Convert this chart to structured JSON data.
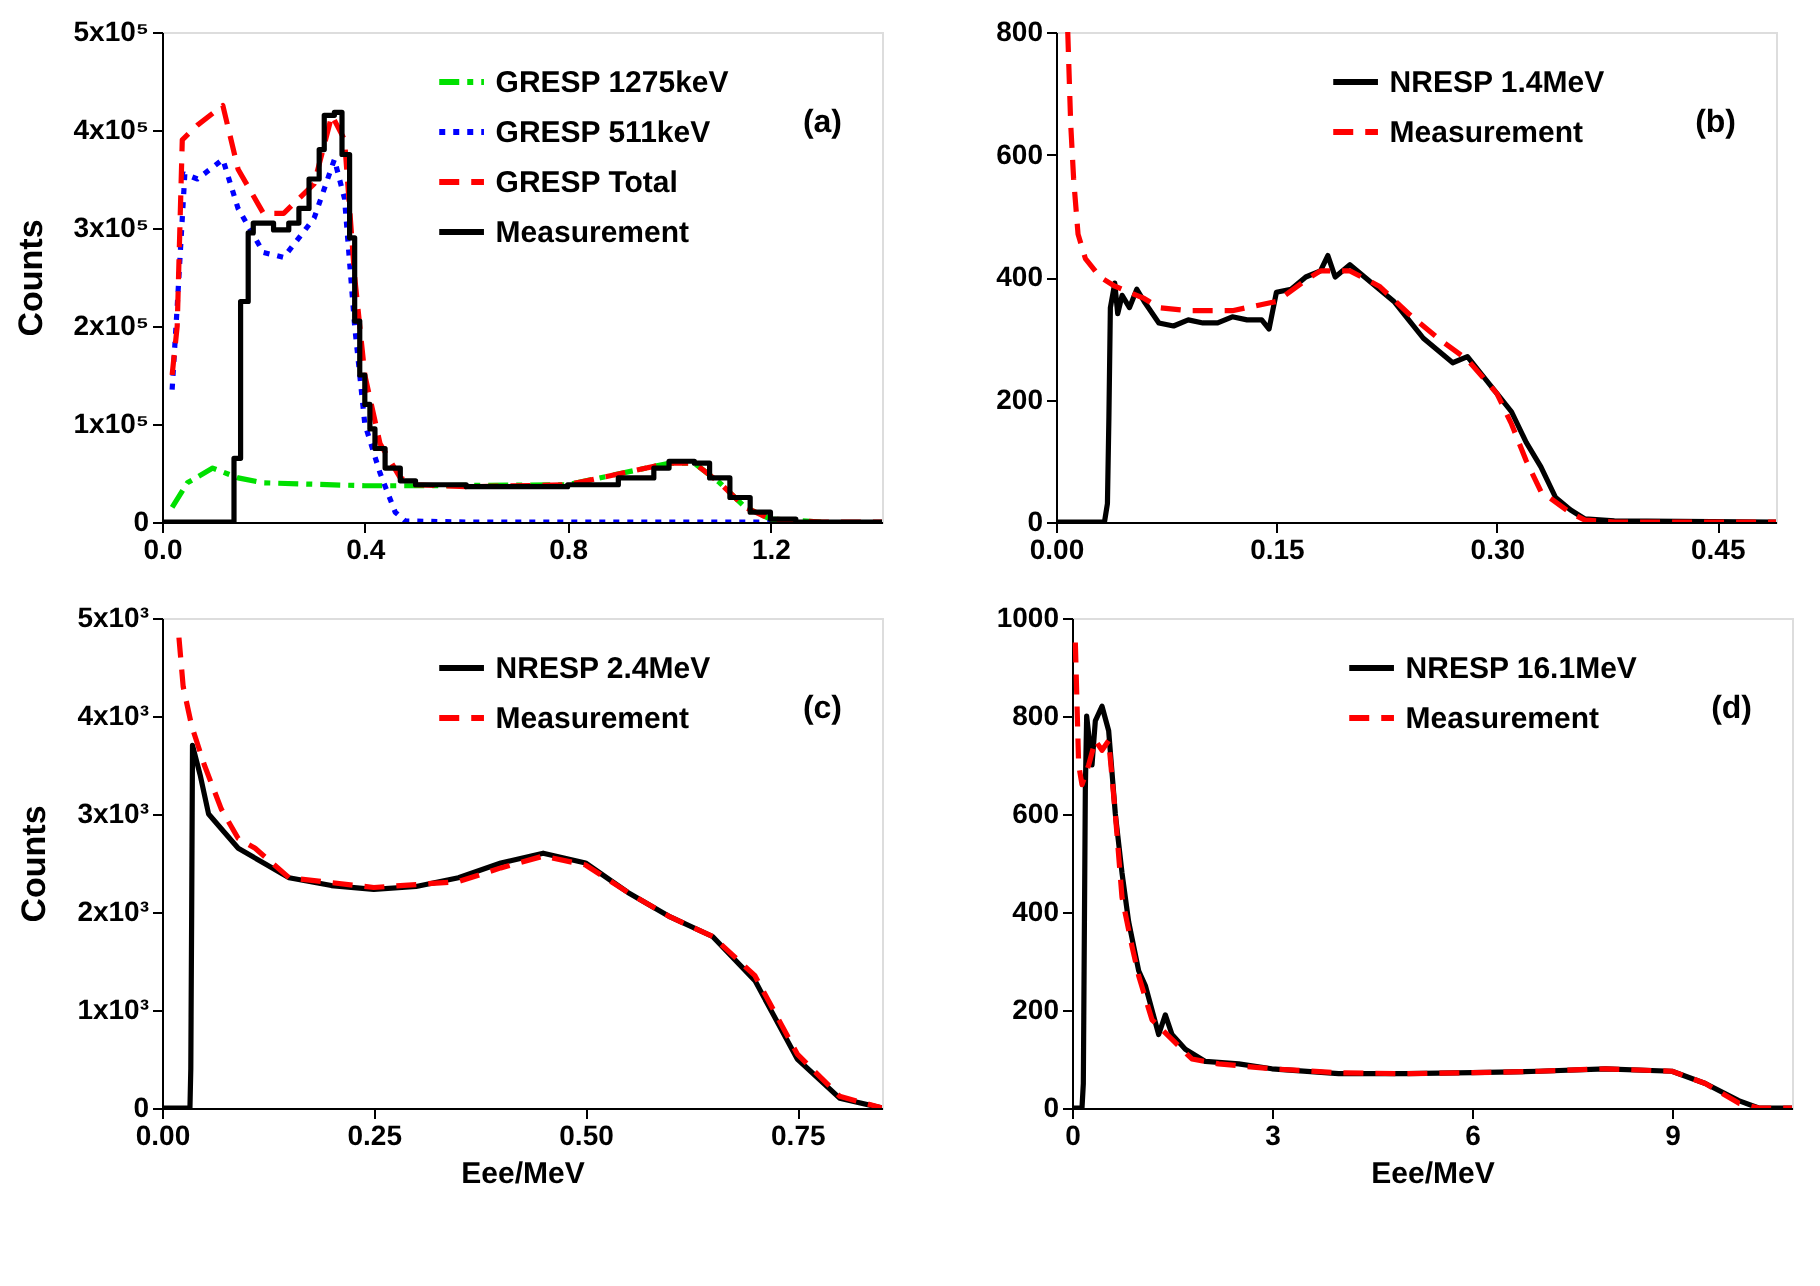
{
  "chart_data": [
    {
      "type": "line",
      "ylabel": "Counts",
      "xlim": [
        0,
        1.42
      ],
      "xticks": [
        {
          "value": 0,
          "label": "0.0"
        },
        0.4,
        0.8,
        1.2
      ],
      "ylim": [
        0,
        500000
      ],
      "yticks": [
        0,
        {
          "value": 100000,
          "label": "1x10⁵"
        },
        {
          "value": 200000,
          "label": "2x10⁵"
        },
        {
          "value": 300000,
          "label": "3x10⁵"
        },
        {
          "value": 400000,
          "label": "4x10⁵"
        },
        {
          "value": 500000,
          "label": "5x10⁵"
        }
      ],
      "grid": false,
      "legend": "top",
      "marker": "none",
      "annotations": [
        "(a)"
      ],
      "series": [
        {
          "name": "GRESP 1275keV",
          "color": "#00e000",
          "line_style": "dashdot",
          "x": [
            0.02,
            0.05,
            0.1,
            0.15,
            0.2,
            0.4,
            0.5,
            0.8,
            1.0,
            1.05,
            1.1,
            1.15,
            1.2,
            1.3
          ],
          "values": [
            15000,
            40000,
            55000,
            45000,
            40000,
            37000,
            37000,
            38000,
            60000,
            60000,
            40000,
            15000,
            3000,
            0
          ]
        },
        {
          "name": "GRESP 511keV",
          "color": "#0000ff",
          "line_style": "dotted",
          "x": [
            0.02,
            0.03,
            0.045,
            0.07,
            0.12,
            0.15,
            0.2,
            0.24,
            0.3,
            0.34,
            0.36,
            0.38,
            0.4,
            0.43,
            0.46,
            0.48,
            0.6,
            1.2
          ],
          "values": [
            135000,
            220000,
            355000,
            350000,
            370000,
            320000,
            275000,
            270000,
            310000,
            370000,
            330000,
            200000,
            100000,
            50000,
            10000,
            1000,
            0,
            0
          ]
        },
        {
          "name": "GRESP Total",
          "color": "#ff0000",
          "line_style": "dashed",
          "x": [
            0.02,
            0.03,
            0.04,
            0.07,
            0.12,
            0.15,
            0.2,
            0.24,
            0.3,
            0.335,
            0.36,
            0.38,
            0.4,
            0.43,
            0.47,
            0.5,
            0.6,
            0.8,
            1.0,
            1.05,
            1.1,
            1.15,
            1.2,
            1.3,
            1.42
          ],
          "values": [
            150000,
            200000,
            390000,
            405000,
            425000,
            360000,
            315000,
            315000,
            345000,
            415000,
            390000,
            250000,
            150000,
            80000,
            45000,
            38000,
            36000,
            38000,
            60000,
            60000,
            40000,
            15000,
            3000,
            0,
            0
          ]
        },
        {
          "name": "Measurement",
          "color": "#000000",
          "line_style": "solid",
          "type": "step",
          "x": [
            0.0,
            0.142,
            0.155,
            0.17,
            0.18,
            0.22,
            0.25,
            0.27,
            0.29,
            0.31,
            0.32,
            0.34,
            0.355,
            0.37,
            0.38,
            0.39,
            0.4,
            0.41,
            0.42,
            0.44,
            0.47,
            0.5,
            0.6,
            0.8,
            0.9,
            0.97,
            1.0,
            1.05,
            1.08,
            1.12,
            1.16,
            1.2,
            1.25,
            1.42
          ],
          "values": [
            0,
            65000,
            225000,
            295000,
            305000,
            298000,
            305000,
            320000,
            350000,
            380000,
            415000,
            418000,
            375000,
            290000,
            205000,
            150000,
            120000,
            95000,
            75000,
            55000,
            42000,
            38000,
            36000,
            38000,
            45000,
            55000,
            62000,
            60000,
            45000,
            25000,
            10000,
            3000,
            0,
            0
          ]
        }
      ]
    },
    {
      "type": "line",
      "xlim": [
        0,
        0.49
      ],
      "xticks": [
        {
          "value": 0,
          "label": "0.00"
        },
        0.15,
        {
          "value": 0.3,
          "label": "0.30"
        },
        0.45
      ],
      "ylim": [
        0,
        800
      ],
      "yticks": [
        0,
        200,
        400,
        600,
        800
      ],
      "grid": false,
      "legend": "top",
      "marker": "none",
      "annotations": [
        "(b)"
      ],
      "series": [
        {
          "name": "NRESP 1.4MeV",
          "color": "#000000",
          "line_style": "solid",
          "x": [
            0.0,
            0.033,
            0.035,
            0.036,
            0.037,
            0.04,
            0.042,
            0.045,
            0.05,
            0.055,
            0.06,
            0.07,
            0.08,
            0.09,
            0.1,
            0.11,
            0.12,
            0.13,
            0.14,
            0.145,
            0.15,
            0.16,
            0.17,
            0.18,
            0.185,
            0.19,
            0.2,
            0.21,
            0.22,
            0.23,
            0.24,
            0.25,
            0.26,
            0.27,
            0.28,
            0.29,
            0.3,
            0.31,
            0.32,
            0.33,
            0.34,
            0.35,
            0.36,
            0.38,
            0.49
          ],
          "values": [
            0,
            0,
            30,
            170,
            350,
            390,
            340,
            370,
            350,
            380,
            360,
            325,
            320,
            330,
            325,
            325,
            335,
            330,
            330,
            315,
            375,
            380,
            400,
            410,
            435,
            400,
            420,
            400,
            380,
            360,
            330,
            300,
            280,
            260,
            270,
            240,
            210,
            180,
            130,
            90,
            40,
            20,
            5,
            2,
            0
          ]
        },
        {
          "name": "Measurement",
          "color": "#ff0000",
          "line_style": "dashed",
          "x": [
            0.008,
            0.01,
            0.012,
            0.015,
            0.02,
            0.03,
            0.04,
            0.06,
            0.07,
            0.09,
            0.12,
            0.15,
            0.17,
            0.18,
            0.2,
            0.22,
            0.24,
            0.26,
            0.28,
            0.3,
            0.31,
            0.32,
            0.33,
            0.35,
            0.36,
            0.38,
            0.49
          ],
          "values": [
            800,
            650,
            560,
            470,
            430,
            400,
            385,
            365,
            350,
            345,
            345,
            360,
            395,
            410,
            410,
            385,
            340,
            300,
            265,
            210,
            160,
            100,
            50,
            15,
            3,
            0,
            0
          ]
        }
      ]
    },
    {
      "type": "line",
      "xlabel": "Eee/MeV",
      "ylabel": "Counts",
      "xlim": [
        0,
        0.85
      ],
      "xticks": [
        {
          "value": 0,
          "label": "0.00"
        },
        0.25,
        {
          "value": 0.5,
          "label": "0.50"
        },
        0.75
      ],
      "ylim": [
        0,
        5000
      ],
      "yticks": [
        0,
        {
          "value": 1000,
          "label": "1x10³"
        },
        {
          "value": 2000,
          "label": "2x10³"
        },
        {
          "value": 3000,
          "label": "3x10³"
        },
        {
          "value": 4000,
          "label": "4x10³"
        },
        {
          "value": 5000,
          "label": "5x10³"
        }
      ],
      "grid": false,
      "legend": "top",
      "marker": "none",
      "annotations": [
        "(c)"
      ],
      "series": [
        {
          "name": "NRESP 2.4MeV",
          "color": "#000000",
          "line_style": "solid",
          "x": [
            0.0,
            0.033,
            0.034,
            0.035,
            0.036,
            0.045,
            0.055,
            0.07,
            0.09,
            0.12,
            0.15,
            0.2,
            0.25,
            0.3,
            0.35,
            0.4,
            0.45,
            0.5,
            0.55,
            0.6,
            0.65,
            0.7,
            0.75,
            0.8,
            0.85
          ],
          "values": [
            0,
            0,
            400,
            1950,
            3700,
            3400,
            3000,
            2850,
            2650,
            2500,
            2350,
            2270,
            2230,
            2260,
            2350,
            2500,
            2600,
            2500,
            2200,
            1950,
            1750,
            1300,
            500,
            100,
            0
          ]
        },
        {
          "name": "Measurement",
          "color": "#ff0000",
          "line_style": "dashed",
          "x": [
            0.02,
            0.025,
            0.035,
            0.05,
            0.07,
            0.09,
            0.11,
            0.15,
            0.2,
            0.25,
            0.3,
            0.35,
            0.4,
            0.45,
            0.5,
            0.55,
            0.6,
            0.65,
            0.7,
            0.75,
            0.8,
            0.85
          ],
          "values": [
            4800,
            4300,
            3900,
            3500,
            3050,
            2750,
            2650,
            2350,
            2300,
            2250,
            2280,
            2310,
            2450,
            2570,
            2480,
            2200,
            1950,
            1750,
            1350,
            550,
            120,
            0
          ]
        }
      ]
    },
    {
      "type": "line",
      "xlabel": "Eee/MeV",
      "xlim": [
        0,
        10.8
      ],
      "xticks": [
        0,
        3,
        6,
        9
      ],
      "ylim": [
        0,
        1000
      ],
      "yticks": [
        0,
        200,
        400,
        600,
        800,
        1000
      ],
      "grid": false,
      "legend": "top",
      "marker": "none",
      "annotations": [
        "(d)"
      ],
      "series": [
        {
          "name": "NRESP 16.1MeV",
          "color": "#000000",
          "line_style": "solid",
          "x": [
            0.0,
            0.15,
            0.17,
            0.2,
            0.22,
            0.3,
            0.35,
            0.45,
            0.55,
            0.65,
            0.75,
            0.85,
            1.0,
            1.1,
            1.3,
            1.4,
            1.5,
            1.7,
            2.0,
            2.5,
            3,
            4,
            5,
            6,
            7,
            8,
            9,
            9.5,
            10,
            10.3,
            10.8
          ],
          "values": [
            0,
            0,
            50,
            650,
            800,
            700,
            790,
            820,
            770,
            600,
            480,
            380,
            280,
            250,
            150,
            190,
            150,
            120,
            95,
            90,
            80,
            70,
            70,
            72,
            75,
            80,
            75,
            50,
            15,
            0,
            0
          ]
        },
        {
          "name": "Measurement",
          "color": "#ff0000",
          "line_style": "dashed",
          "x": [
            0.05,
            0.1,
            0.15,
            0.25,
            0.35,
            0.45,
            0.55,
            0.65,
            0.75,
            0.9,
            1.0,
            1.2,
            1.5,
            1.8,
            2.2,
            3,
            4,
            5,
            6,
            7,
            8,
            9,
            9.5,
            10,
            10.3,
            10.8
          ],
          "values": [
            950,
            700,
            660,
            700,
            750,
            730,
            750,
            600,
            430,
            330,
            270,
            180,
            140,
            100,
            90,
            80,
            72,
            70,
            72,
            75,
            80,
            75,
            50,
            10,
            0,
            0
          ]
        }
      ]
    }
  ]
}
